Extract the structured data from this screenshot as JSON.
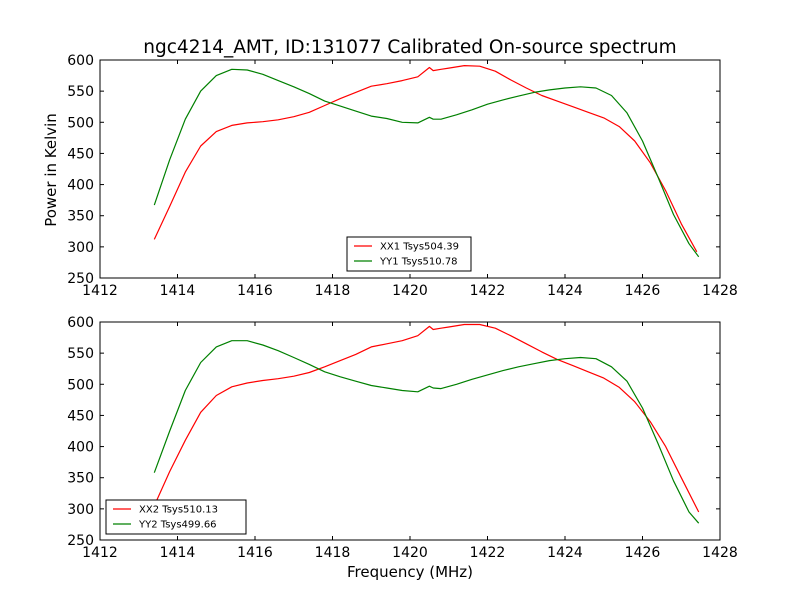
{
  "figure": {
    "title": "ngc4214_AMT, ID:131077 Calibrated On-source spectrum",
    "ylabel": "Power in Kelvin",
    "xlabel": "Frequency (MHz)"
  },
  "chart_data": [
    {
      "type": "line",
      "title": "ngc4214_AMT, ID:131077 Calibrated On-source spectrum",
      "xlabel": "",
      "ylabel": "Power in Kelvin",
      "xlim": [
        1412,
        1428
      ],
      "ylim": [
        250,
        600
      ],
      "xticks": [
        "1412",
        "1414",
        "1416",
        "1418",
        "1420",
        "1422",
        "1424",
        "1426",
        "1428"
      ],
      "yticks": [
        "250",
        "300",
        "350",
        "400",
        "450",
        "500",
        "550",
        "600"
      ],
      "grid": false,
      "legend_position": "lower-center",
      "series": [
        {
          "name": "XX1 Tsys504.39",
          "color": "#ff0000",
          "x": [
            1413.4,
            1413.8,
            1414.2,
            1414.6,
            1415.0,
            1415.4,
            1415.8,
            1416.2,
            1416.6,
            1417.0,
            1417.4,
            1417.8,
            1418.2,
            1418.6,
            1419.0,
            1419.4,
            1419.8,
            1420.2,
            1420.5,
            1420.6,
            1420.8,
            1421.0,
            1421.4,
            1421.8,
            1422.2,
            1422.6,
            1423.0,
            1423.4,
            1423.8,
            1424.2,
            1424.6,
            1425.0,
            1425.4,
            1425.8,
            1426.2,
            1426.6,
            1427.0,
            1427.4
          ],
          "y": [
            312,
            365,
            420,
            462,
            485,
            495,
            499,
            501,
            504,
            509,
            516,
            527,
            538,
            548,
            558,
            562,
            567,
            573,
            588,
            583,
            585,
            587,
            591,
            590,
            582,
            568,
            555,
            543,
            534,
            525,
            516,
            507,
            493,
            470,
            435,
            390,
            337,
            292
          ]
        },
        {
          "name": "YY1 Tsys510.78",
          "color": "#008000",
          "x": [
            1413.4,
            1413.8,
            1414.2,
            1414.6,
            1415.0,
            1415.4,
            1415.8,
            1416.2,
            1416.6,
            1417.0,
            1417.4,
            1417.8,
            1418.2,
            1418.6,
            1419.0,
            1419.4,
            1419.8,
            1420.2,
            1420.5,
            1420.6,
            1420.8,
            1421.2,
            1421.6,
            1422.0,
            1422.4,
            1422.8,
            1423.2,
            1423.6,
            1424.0,
            1424.4,
            1424.8,
            1425.2,
            1425.6,
            1426.0,
            1426.4,
            1426.8,
            1427.2,
            1427.45
          ],
          "y": [
            367,
            440,
            505,
            550,
            575,
            585,
            584,
            577,
            567,
            557,
            546,
            534,
            526,
            518,
            510,
            506,
            500,
            499,
            508,
            505,
            505,
            512,
            520,
            529,
            536,
            542,
            548,
            552,
            555,
            557,
            555,
            543,
            515,
            470,
            412,
            352,
            305,
            284
          ]
        }
      ]
    },
    {
      "type": "line",
      "title": "",
      "xlabel": "Frequency (MHz)",
      "ylabel": "",
      "xlim": [
        1412,
        1428
      ],
      "ylim": [
        250,
        600
      ],
      "xticks": [
        "1412",
        "1414",
        "1416",
        "1418",
        "1420",
        "1422",
        "1424",
        "1426",
        "1428"
      ],
      "yticks": [
        "250",
        "300",
        "350",
        "400",
        "450",
        "500",
        "550",
        "600"
      ],
      "grid": false,
      "legend_position": "lower-left",
      "series": [
        {
          "name": "XX2 Tsys510.13",
          "color": "#ff0000",
          "x": [
            1413.4,
            1413.8,
            1414.2,
            1414.6,
            1415.0,
            1415.4,
            1415.8,
            1416.2,
            1416.6,
            1417.0,
            1417.4,
            1417.8,
            1418.2,
            1418.6,
            1419.0,
            1419.4,
            1419.8,
            1420.2,
            1420.5,
            1420.6,
            1420.8,
            1421.0,
            1421.4,
            1421.8,
            1422.2,
            1422.6,
            1423.0,
            1423.4,
            1423.8,
            1424.2,
            1424.6,
            1425.0,
            1425.4,
            1425.8,
            1426.2,
            1426.6,
            1427.0,
            1427.45
          ],
          "y": [
            305,
            360,
            410,
            455,
            482,
            496,
            502,
            506,
            509,
            513,
            519,
            528,
            538,
            548,
            560,
            565,
            570,
            578,
            593,
            588,
            590,
            592,
            596,
            596,
            590,
            578,
            565,
            552,
            540,
            530,
            520,
            510,
            495,
            472,
            440,
            400,
            350,
            295
          ]
        },
        {
          "name": "YY2 Tsys499.66",
          "color": "#008000",
          "x": [
            1413.4,
            1413.8,
            1414.2,
            1414.6,
            1415.0,
            1415.4,
            1415.8,
            1416.2,
            1416.6,
            1417.0,
            1417.4,
            1417.8,
            1418.2,
            1418.6,
            1419.0,
            1419.4,
            1419.8,
            1420.2,
            1420.5,
            1420.6,
            1420.8,
            1421.2,
            1421.6,
            1422.0,
            1422.4,
            1422.8,
            1423.2,
            1423.6,
            1424.0,
            1424.4,
            1424.8,
            1425.2,
            1425.6,
            1426.0,
            1426.4,
            1426.8,
            1427.2,
            1427.45
          ],
          "y": [
            358,
            425,
            490,
            535,
            560,
            570,
            570,
            563,
            554,
            543,
            532,
            520,
            512,
            505,
            498,
            494,
            490,
            488,
            497,
            494,
            493,
            500,
            508,
            515,
            522,
            528,
            533,
            538,
            541,
            543,
            541,
            528,
            505,
            462,
            405,
            345,
            295,
            277
          ]
        }
      ]
    }
  ]
}
